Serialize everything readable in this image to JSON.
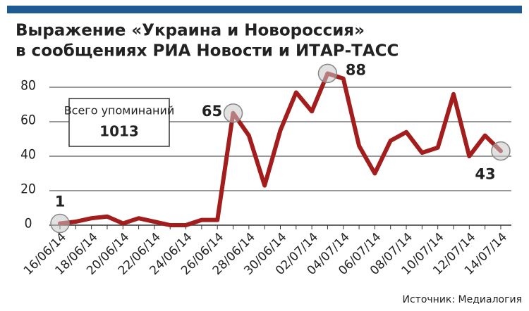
{
  "chart_data": {
    "type": "line",
    "title": "Выражение «Украина и Новороссия»",
    "subtitle": "в сообщениях РИА Новости и ИТАР-ТАСС",
    "categories": [
      "16/06/14",
      null,
      "18/06/14",
      null,
      "20/06/14",
      null,
      "22/06/14",
      null,
      "24/06/14",
      null,
      "26/06/14",
      null,
      "28/06/14",
      null,
      "30/06/14",
      null,
      "02/07/14",
      null,
      "04/07/14",
      null,
      "06/07/14",
      null,
      "08/07/14",
      null,
      "10/07/14",
      null,
      "12/07/14",
      null,
      "14/07/14"
    ],
    "series": [
      {
        "name": "Упоминания",
        "color": "#a31d1d",
        "values": [
          1,
          2,
          4,
          5,
          1,
          4,
          2,
          0,
          0,
          3,
          3,
          65,
          52,
          23,
          55,
          77,
          66,
          88,
          85,
          46,
          30,
          49,
          54,
          42,
          45,
          76,
          40,
          52,
          43
        ]
      }
    ],
    "ylim": [
      0,
      80
    ],
    "yticks": [
      0,
      20,
      40,
      60,
      80
    ],
    "grid": true,
    "total_label": "Всего упоминаний",
    "total": 1013,
    "source": "Источник: Медиалогия"
  }
}
